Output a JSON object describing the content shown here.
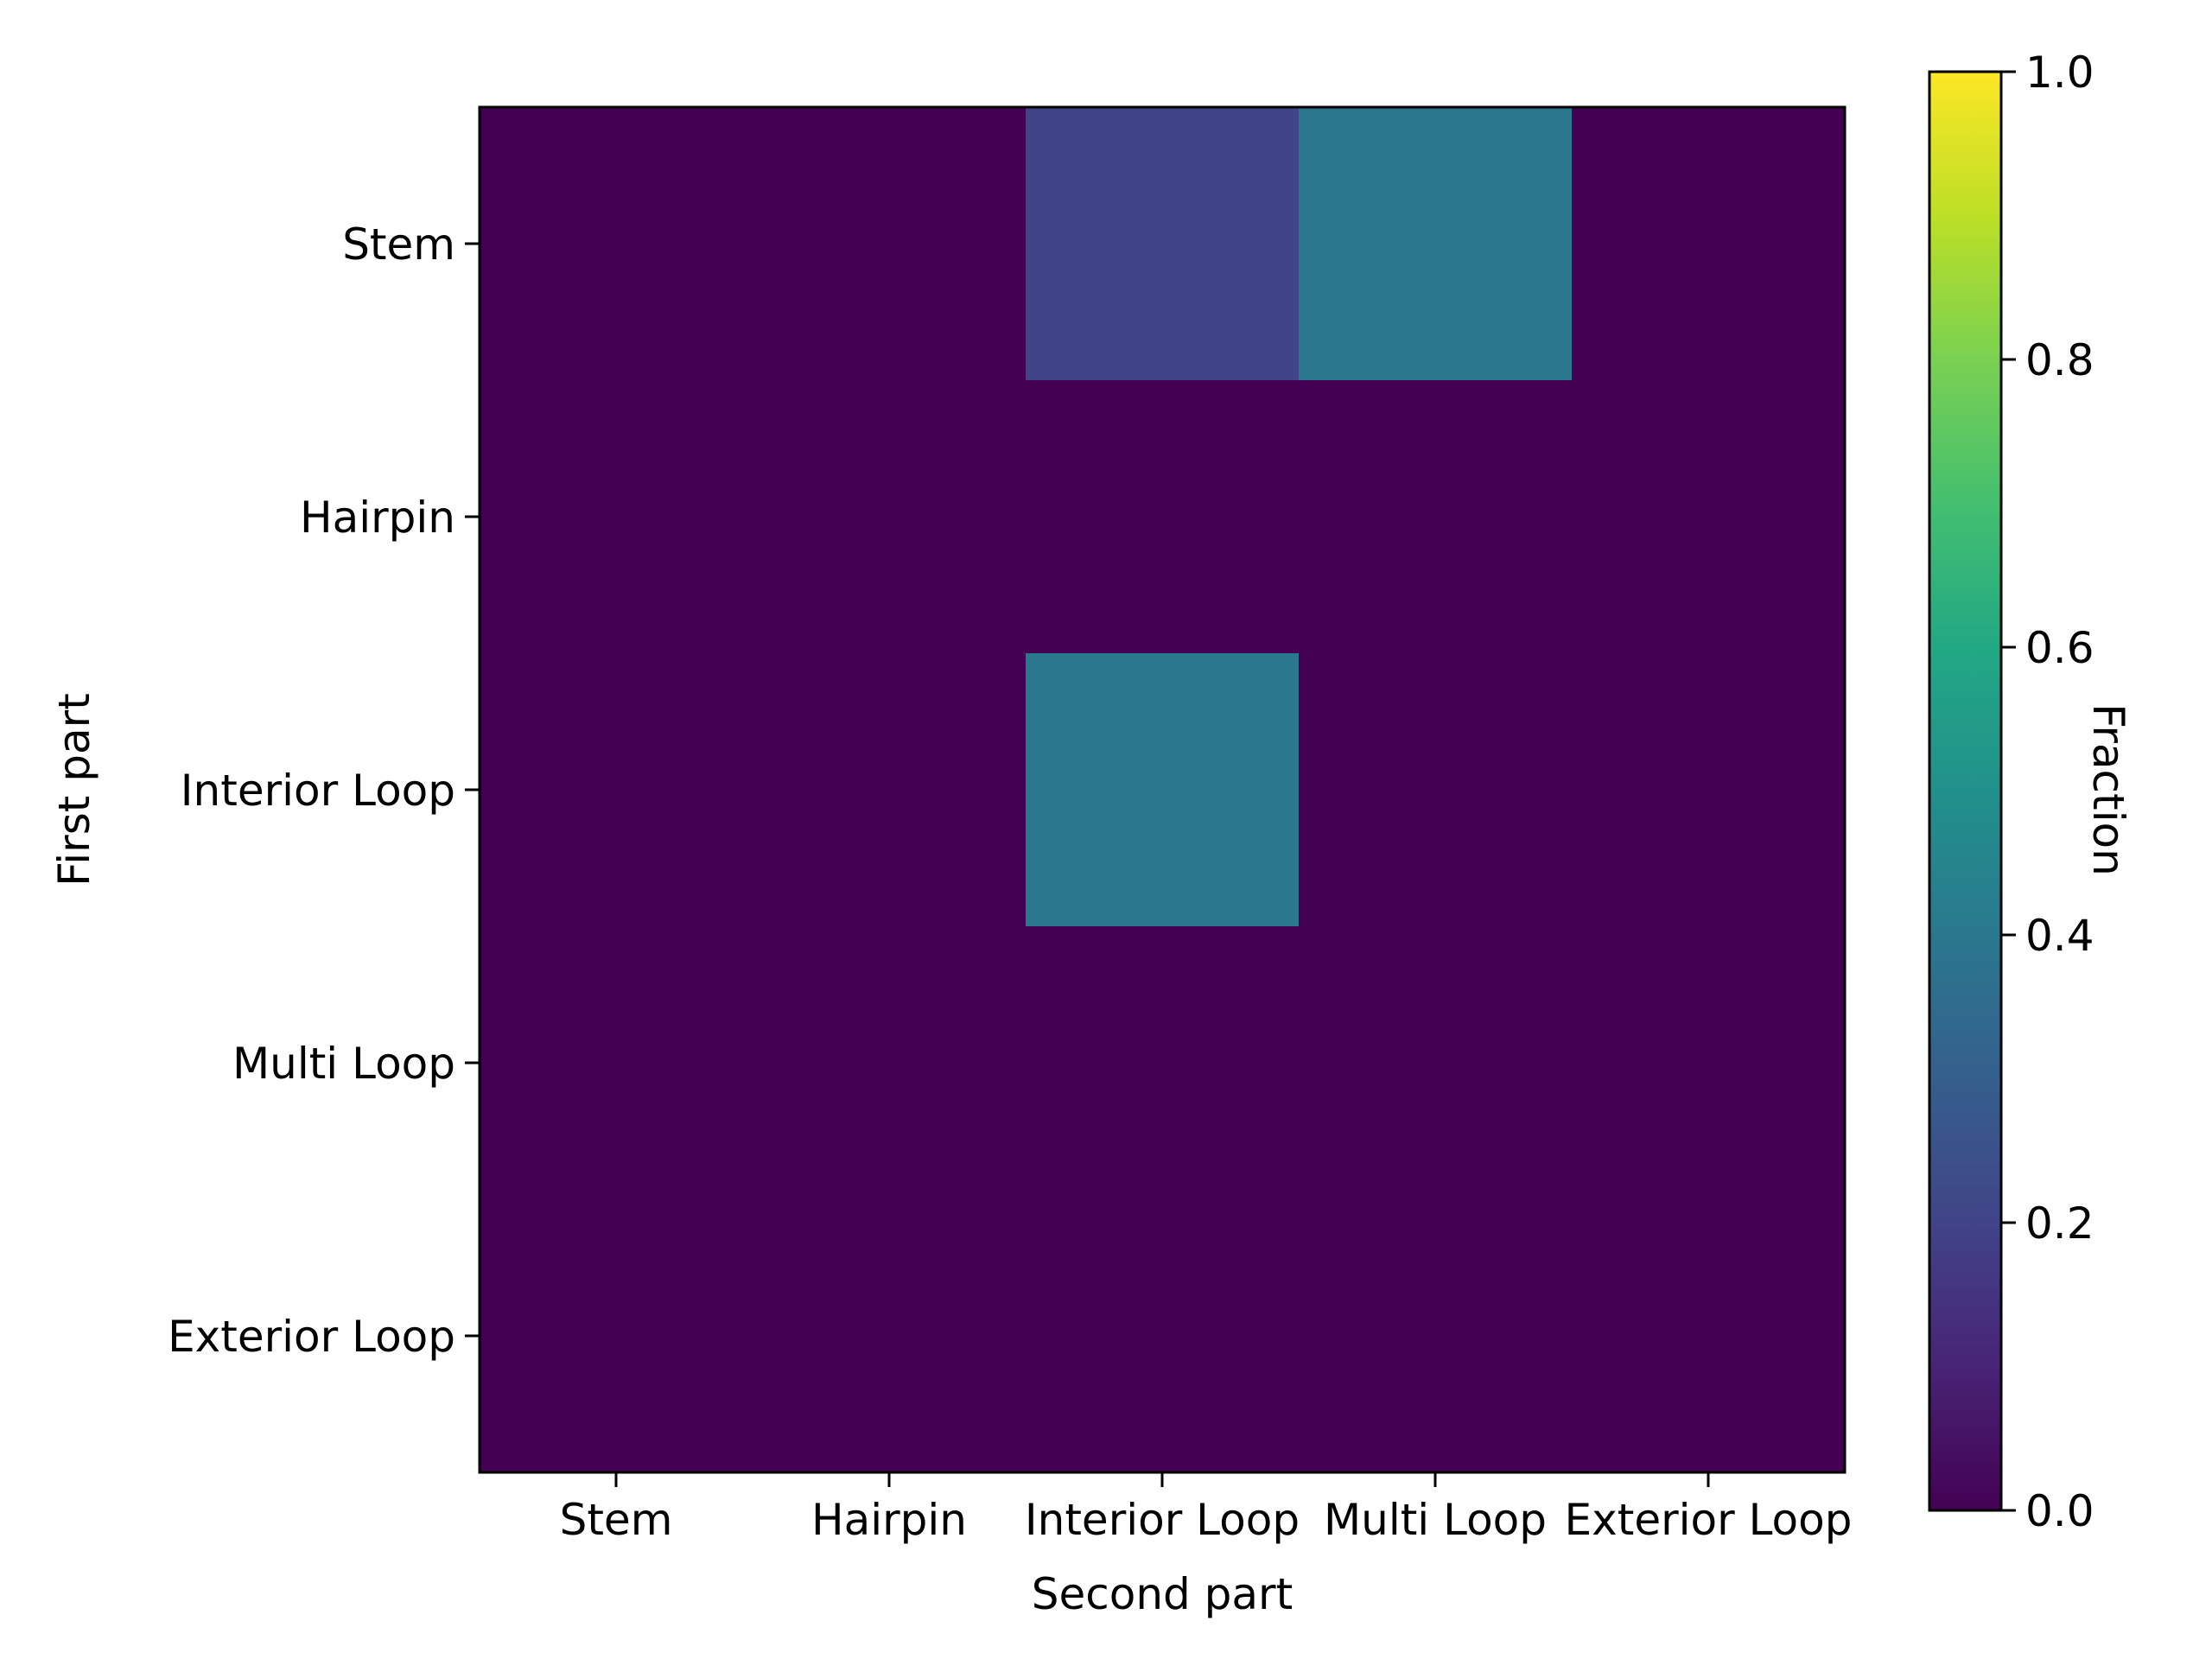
{
  "chart_data": {
    "type": "heatmap",
    "x_categories": [
      "Stem",
      "Hairpin",
      "Interior Loop",
      "Multi Loop",
      "Exterior Loop"
    ],
    "y_categories": [
      "Stem",
      "Hairpin",
      "Interior Loop",
      "Multi Loop",
      "Exterior Loop"
    ],
    "values": [
      [
        0.0,
        0.0,
        0.2,
        0.4,
        0.0
      ],
      [
        0.0,
        0.0,
        0.0,
        0.0,
        0.0
      ],
      [
        0.0,
        0.0,
        0.4,
        0.0,
        0.0
      ],
      [
        0.0,
        0.0,
        0.0,
        0.0,
        0.0
      ],
      [
        0.0,
        0.0,
        0.0,
        0.0,
        0.0
      ]
    ],
    "xlabel": "Second part",
    "ylabel": "First part",
    "colorbar": {
      "label": "Fraction",
      "range": [
        0.0,
        1.0
      ],
      "ticks": [
        0.0,
        0.2,
        0.4,
        0.6,
        0.8,
        1.0
      ],
      "tick_labels": [
        "0.0",
        "0.2",
        "0.4",
        "0.6",
        "0.8",
        "1.0"
      ],
      "colormap": "viridis"
    },
    "grid": false
  }
}
